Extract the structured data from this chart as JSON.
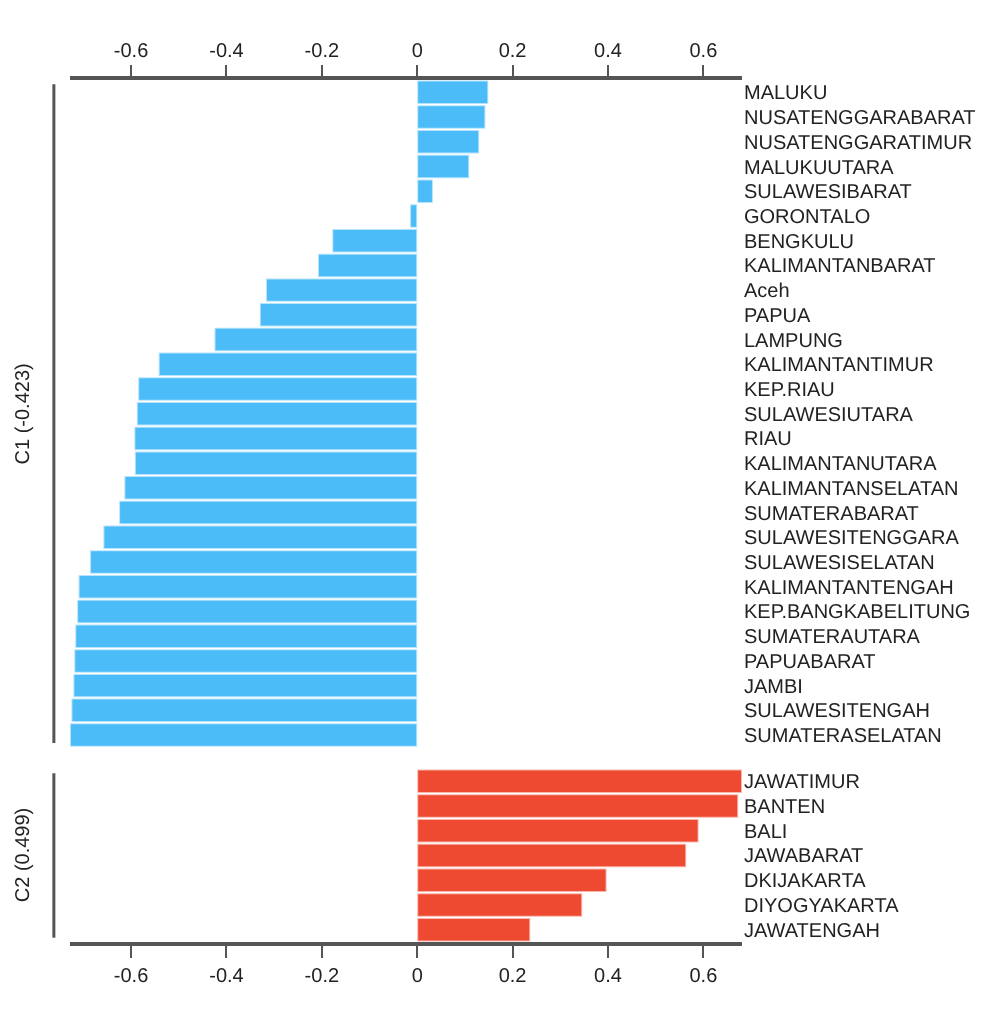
{
  "chart_data": [
    {
      "type": "bar",
      "orientation": "horizontal",
      "ylabel": "C1 (-0.423)",
      "categories": [
        "MALUKU",
        "NUSATENGGARABARAT",
        "NUSATENGGARATIMUR",
        "MALUKUUTARA",
        "SULAWESIBARAT",
        "GORONTALO",
        "BENGKULU",
        "KALIMANTANBARAT",
        "Aceh",
        "PAPUA",
        "LAMPUNG",
        "KALIMANTANTIMUR",
        "KEP.RIAU",
        "SULAWESIUTARA",
        "RIAU",
        "KALIMANTANUTARA",
        "KALIMANTANSELATAN",
        "SUMATERABARAT",
        "SULAWESITENGGARA",
        "SULAWESISELATAN",
        "KALIMANTANTENGAH",
        "KEP.BANGKABELITUNG",
        "SUMATERAUTARA",
        "PAPUABARAT",
        "JAMBI",
        "SULAWESITENGAH",
        "SUMATERASELATAN"
      ],
      "series": [
        {
          "color": "#4bbcf8",
          "values": [
            0.149,
            0.143,
            0.13,
            0.109,
            0.033,
            -0.015,
            -0.178,
            -0.208,
            -0.317,
            -0.33,
            -0.425,
            -0.542,
            -0.585,
            -0.588,
            -0.593,
            -0.592,
            -0.614,
            -0.625,
            -0.658,
            -0.686,
            -0.71,
            -0.713,
            -0.717,
            -0.719,
            -0.721,
            -0.725,
            -0.728
          ]
        }
      ],
      "xlim": [
        -0.728,
        0.681
      ],
      "xticks": [
        -0.6,
        -0.4,
        -0.2,
        0,
        0.2,
        0.4,
        0.6
      ]
    },
    {
      "type": "bar",
      "orientation": "horizontal",
      "ylabel": "C2 (0.499)",
      "categories": [
        "JAWATIMUR",
        "BANTEN",
        "BALI",
        "JAWABARAT",
        "DKIJAKARTA",
        "DIYOGYAKARTA",
        "JAWATENGAH"
      ],
      "series": [
        {
          "color": "#ee4a32",
          "values": [
            0.681,
            0.673,
            0.59,
            0.564,
            0.397,
            0.346,
            0.237
          ]
        }
      ],
      "xlim": [
        -0.728,
        0.681
      ],
      "xticks": [
        -0.6,
        -0.4,
        -0.2,
        0,
        0.2,
        0.4,
        0.6
      ]
    }
  ]
}
